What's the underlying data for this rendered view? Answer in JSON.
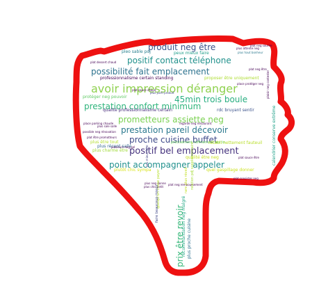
{
  "words": [
    {
      "text": "avoir impression déranger",
      "color": "#8fd14f"
    },
    {
      "text": "positif bel emplacement",
      "color": "#46337e"
    },
    {
      "text": "produit neg être",
      "color": "#3b528b"
    },
    {
      "text": "positif contact téléphone",
      "color": "#21918c"
    },
    {
      "text": "possibilité fait emplacement",
      "color": "#2c728e"
    },
    {
      "text": "prestation confort minimum",
      "color": "#2fb47c"
    },
    {
      "text": "45min trois boule",
      "color": "#28ae80"
    },
    {
      "text": "prometteurs assiette neg",
      "color": "#7ad151"
    },
    {
      "text": "prestation pareil décevoir",
      "color": "#2a788e"
    },
    {
      "text": "proche cuisine buffet",
      "color": "#3e4989"
    },
    {
      "text": "point accompagner appeler",
      "color": "#21908d"
    },
    {
      "text": "prix être revoir",
      "color": "#35b779"
    },
    {
      "text": "qualité professionnalisme certain",
      "color": "#472d7b"
    },
    {
      "text": "rdc bruyant sentir",
      "color": "#3b528b"
    },
    {
      "text": "professionnalisme certain standing",
      "color": "#440154"
    },
    {
      "text": "proposer être uniquement",
      "color": "#addc30"
    },
    {
      "text": "protéger neg pouvoir",
      "color": "#5ec962"
    },
    {
      "text": "plus récent salle",
      "color": "#31688e"
    },
    {
      "text": "quelqu'un chose payer",
      "color": "#b5de2b"
    },
    {
      "text": "plutôt chic sympa",
      "color": "#d8e219"
    },
    {
      "text": "quel gaspillage donner",
      "color": "#cbe11e"
    },
    {
      "text": "qualité être neg",
      "color": "#c8e020"
    },
    {
      "text": "plus charme être",
      "color": "#a0da39"
    },
    {
      "text": "plus être tout",
      "color": "#b2dd2d"
    },
    {
      "text": "peux mieux faire",
      "color": "#1f9e89"
    },
    {
      "text": "pleo sable pdj",
      "color": "#277f8e"
    },
    {
      "text": "plus parti produit",
      "color": "#404387"
    },
    {
      "text": "précisément raffinement matin",
      "color": "#67cc5c"
    },
    {
      "text": "rétabli nettement fauteuil",
      "color": "#b8de29"
    },
    {
      "text": "relation pdj supplémentaire",
      "color": "#a5db36"
    },
    {
      "text": "rare plus réveil",
      "color": "#c2df23"
    },
    {
      "text": "calendrier conserve extrême",
      "color": "#1fa088"
    },
    {
      "text": "recommandation neg malgré",
      "color": "#21a685"
    },
    {
      "text": "plus proche cuisine",
      "color": "#2d708e"
    },
    {
      "text": "faire beaucoup mieux",
      "color": "#3f4788"
    },
    {
      "text": "plaisir neg contester",
      "color": "#440154"
    },
    {
      "text": "peu mieux faire",
      "color": "#414487"
    },
    {
      "text": "plus haut bonheur",
      "color": "#2a788e"
    },
    {
      "text": "plus attente neg",
      "color": "#440154"
    },
    {
      "text": "plus neg donne",
      "color": "#440154"
    },
    {
      "text": "plus chic petit",
      "color": "#440154"
    },
    {
      "text": "plat neg être",
      "color": "#440154"
    },
    {
      "text": "plat neg remboursement",
      "color": "#440154"
    },
    {
      "text": "place parking chaude",
      "color": "#440154"
    },
    {
      "text": "possible neg rénovation",
      "color": "#440154"
    },
    {
      "text": "plat être promotteurs",
      "color": "#440154"
    },
    {
      "text": "plat sauce être",
      "color": "#440154"
    },
    {
      "text": "plat consister neg",
      "color": "#440154"
    },
    {
      "text": "plus sale salle",
      "color": "#440154"
    },
    {
      "text": "plat sauce chaud",
      "color": "#440154"
    },
    {
      "text": "plusieurs neg gel",
      "color": "#440154"
    },
    {
      "text": "plat dessert chaud",
      "color": "#440154"
    },
    {
      "text": "regarde neg restaurant",
      "color": "#440154"
    },
    {
      "text": "place protéger neg",
      "color": "#440154"
    },
    {
      "text": "plat neg sourire",
      "color": "#440154"
    }
  ]
}
